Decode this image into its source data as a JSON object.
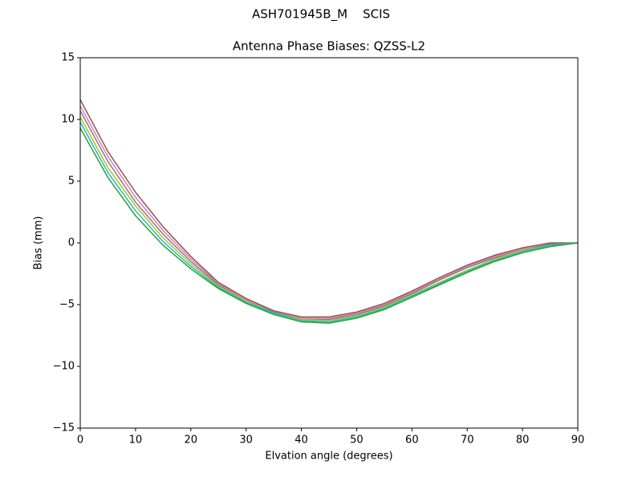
{
  "chart_data": {
    "type": "line",
    "suptitle": "ASH701945B_M    SCIS",
    "title": "Antenna Phase Biases: QZSS-L2",
    "x_label": "Elvation angle (degrees)",
    "y_label": "Bias (mm)",
    "x": [
      0,
      5,
      10,
      15,
      20,
      25,
      30,
      35,
      40,
      45,
      50,
      55,
      60,
      65,
      70,
      75,
      80,
      85,
      90
    ],
    "series": [
      {
        "color": "#8c564b",
        "values": [
          11.6,
          7.4,
          4.1,
          1.3,
          -1.1,
          -3.2,
          -4.5,
          -5.5,
          -6.0,
          -6.0,
          -5.6,
          -4.9,
          -3.9,
          -2.8,
          -1.8,
          -1.0,
          -0.4,
          0,
          0
        ]
      },
      {
        "color": "#e377c2",
        "values": [
          11.1,
          7.0,
          3.7,
          1.0,
          -1.3,
          -3.3,
          -4.6,
          -5.6,
          -6.1,
          -6.1,
          -5.7,
          -5.0,
          -4.0,
          -2.9,
          -1.9,
          -1.1,
          -0.5,
          -0.1,
          0
        ]
      },
      {
        "color": "#7f7f7f",
        "values": [
          10.7,
          6.6,
          3.3,
          0.7,
          -1.5,
          -3.4,
          -4.7,
          -5.6,
          -6.2,
          -6.2,
          -5.8,
          -5.1,
          -4.1,
          -3.0,
          -2.0,
          -1.2,
          -0.6,
          -0.1,
          0
        ]
      },
      {
        "color": "#bcbd22",
        "values": [
          10.2,
          6.1,
          3.0,
          0.4,
          -1.7,
          -3.5,
          -4.7,
          -5.7,
          -6.2,
          -6.3,
          -5.9,
          -5.2,
          -4.2,
          -3.2,
          -2.2,
          -1.3,
          -0.6,
          -0.2,
          0
        ]
      },
      {
        "color": "#17becf",
        "values": [
          9.8,
          5.7,
          2.6,
          0.1,
          -1.9,
          -3.6,
          -4.8,
          -5.7,
          -6.3,
          -6.4,
          -6.0,
          -5.3,
          -4.3,
          -3.3,
          -2.3,
          -1.4,
          -0.7,
          -0.2,
          0
        ]
      },
      {
        "color": "#2ca02c",
        "values": [
          9.3,
          5.3,
          2.2,
          -0.2,
          -2.1,
          -3.7,
          -4.9,
          -5.8,
          -6.4,
          -6.5,
          -6.1,
          -5.4,
          -4.4,
          -3.4,
          -2.4,
          -1.5,
          -0.8,
          -0.3,
          0
        ]
      }
    ],
    "xlim": [
      0,
      90
    ],
    "xticks": [
      0,
      10,
      20,
      30,
      40,
      50,
      60,
      70,
      80,
      90
    ],
    "ylim": [
      -15,
      15
    ],
    "yticks": [
      {
        "value": -15,
        "label": "−15"
      },
      {
        "value": -10,
        "label": "−10"
      },
      {
        "value": -5,
        "label": "−5"
      },
      0,
      5,
      10,
      15
    ],
    "grid": false
  }
}
